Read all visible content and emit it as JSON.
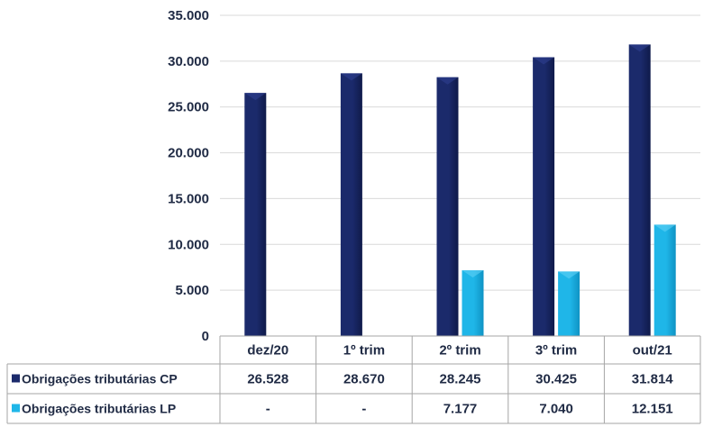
{
  "chart_data": {
    "type": "bar",
    "categories": [
      "dez/20",
      "1º trim",
      "2º trim",
      "3º trim",
      "out/21"
    ],
    "series": [
      {
        "name": "Obrigações tributárias CP",
        "values": [
          26528,
          28670,
          28245,
          30425,
          31814
        ],
        "labels": [
          "26.528",
          "28.670",
          "28.245",
          "30.425",
          "31.814"
        ],
        "color": "#1b2a6b"
      },
      {
        "name": "Obrigações tributárias LP",
        "values": [
          null,
          null,
          7177,
          7040,
          12151
        ],
        "labels": [
          "-",
          "-",
          "7.177",
          "7.040",
          "12.151"
        ],
        "color": "#1fb6e8"
      }
    ],
    "y_ticks": [
      "35.000",
      "30.000",
      "25.000",
      "20.000",
      "15.000",
      "10.000",
      "5.000",
      "0"
    ],
    "ylim": [
      0,
      35000
    ],
    "grid": true,
    "legend": "data-table"
  }
}
